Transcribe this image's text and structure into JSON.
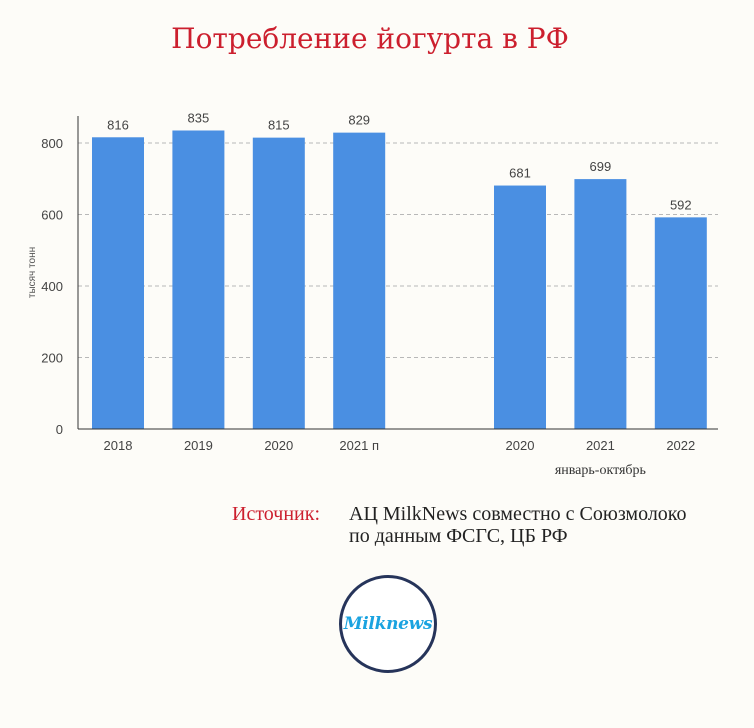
{
  "title": "Потребление йогурта в РФ",
  "source": {
    "label": "Источник:",
    "line1": "АЦ MilkNews совместно с Союзмолоко",
    "line2": "по данным ФСГС, ЦБ РФ"
  },
  "logo": {
    "text": "Milknews"
  },
  "chart_data": {
    "type": "bar",
    "ylabel": "тысяч тонн",
    "ylim": [
      0,
      800
    ],
    "yticks": [
      0,
      200,
      400,
      600,
      800
    ],
    "grid": true,
    "bar_color": "#4a8fe2",
    "groups": [
      {
        "label": "",
        "categories": [
          "2018",
          "2019",
          "2020",
          "2021 п"
        ],
        "values": [
          816,
          835,
          815,
          829
        ]
      },
      {
        "label": "январь-октябрь",
        "categories": [
          "2020",
          "2021",
          "2022"
        ],
        "values": [
          681,
          699,
          592
        ]
      }
    ]
  }
}
